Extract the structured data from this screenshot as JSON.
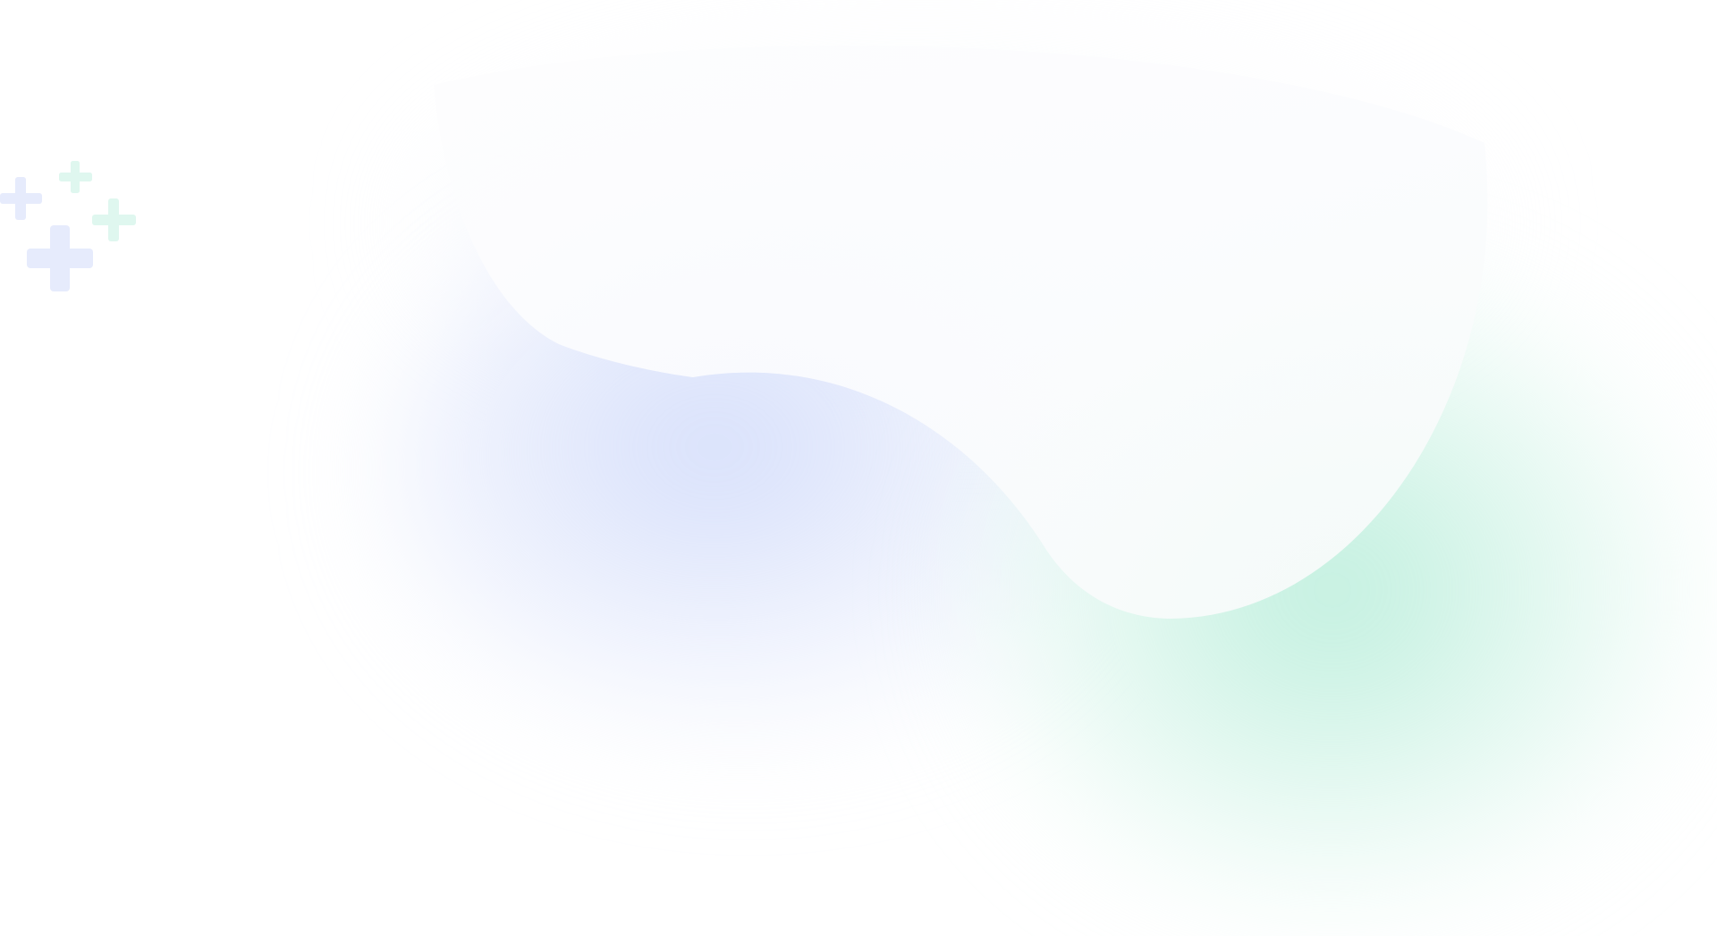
{
  "background": {
    "base_color": "#ffffff",
    "accent_blue": "#e3e9fc",
    "accent_green": "#cff3e6"
  },
  "decorations": {
    "sparkles": [
      {
        "icon": "plus-icon",
        "color": "#e6ebfc"
      },
      {
        "icon": "plus-icon",
        "color": "#dff7ef"
      },
      {
        "icon": "plus-icon",
        "color": "#dff7ef"
      },
      {
        "icon": "plus-icon",
        "color": "#e6ebfc"
      }
    ]
  }
}
